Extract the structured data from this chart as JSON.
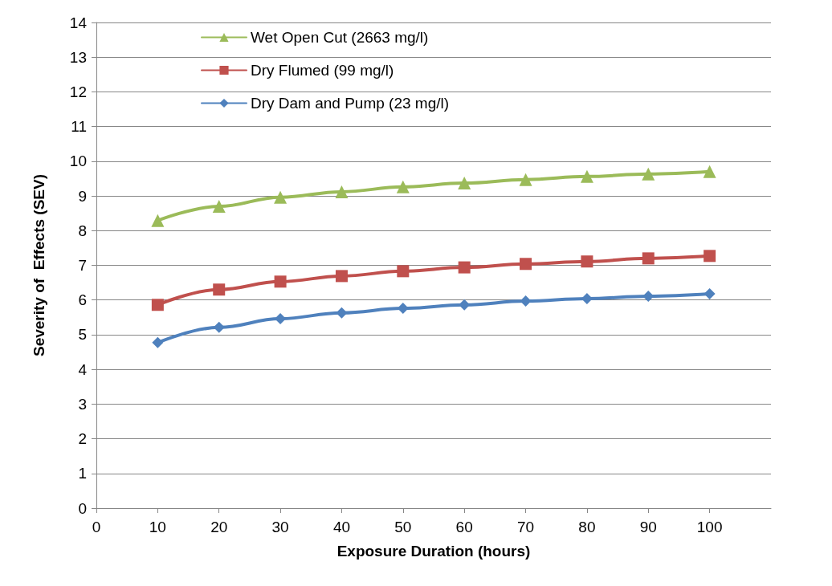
{
  "chart_data": {
    "type": "line",
    "xlabel": "Exposure Duration (hours)",
    "ylabel": "Severity of  Effects (SEV)",
    "x": [
      10,
      20,
      30,
      40,
      50,
      60,
      70,
      80,
      90,
      100
    ],
    "series": [
      {
        "name": "Wet Open Cut (2663 mg/l)",
        "color": "#9bbb59",
        "marker": "triangle",
        "values": [
          8.29,
          8.7,
          8.96,
          9.12,
          9.26,
          9.37,
          9.47,
          9.56,
          9.63,
          9.7
        ]
      },
      {
        "name": "Dry Flumed (99 mg/l)",
        "color": "#c0504d",
        "marker": "square",
        "values": [
          5.86,
          6.3,
          6.53,
          6.69,
          6.83,
          6.94,
          7.04,
          7.11,
          7.2,
          7.27
        ]
      },
      {
        "name": "Dry Dam and Pump (23 mg/l)",
        "color": "#4f81bd",
        "marker": "diamond",
        "values": [
          4.77,
          5.21,
          5.46,
          5.63,
          5.76,
          5.86,
          5.97,
          6.04,
          6.11,
          6.18
        ]
      }
    ],
    "xlim": [
      0,
      110
    ],
    "xticks": [
      0,
      10,
      20,
      30,
      40,
      50,
      60,
      70,
      80,
      90,
      100
    ],
    "ylim": [
      0,
      14
    ],
    "yticks": [
      0,
      1,
      2,
      3,
      4,
      5,
      6,
      7,
      8,
      9,
      10,
      11,
      12,
      13,
      14
    ],
    "grid": "y",
    "legend": "top",
    "line_style": "solid"
  }
}
